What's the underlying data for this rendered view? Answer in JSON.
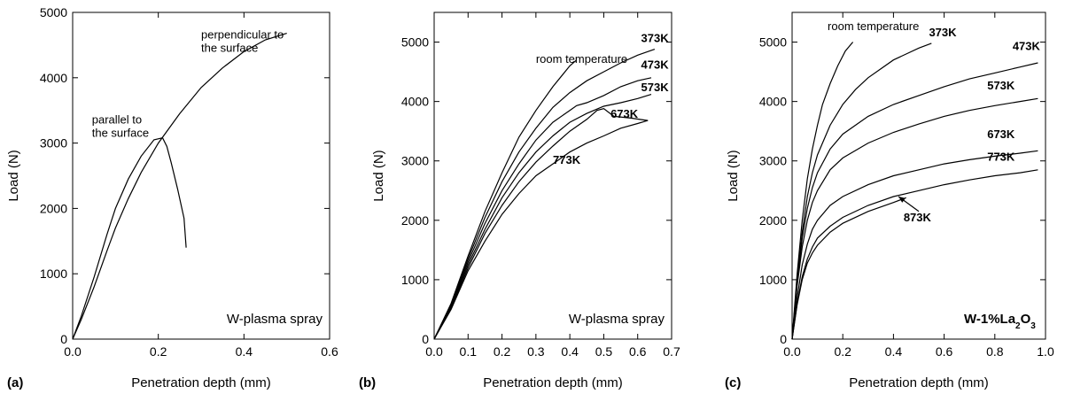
{
  "chart_data": [
    {
      "type": "line",
      "panel_label": "(a)",
      "xlabel": "Penetration depth (mm)",
      "ylabel": "Load (N)",
      "xlim": [
        0,
        0.6
      ],
      "ylim": [
        0,
        5000
      ],
      "xticks": [
        "0.0",
        "0.2",
        "0.4",
        "0.6"
      ],
      "yticks": [
        "0",
        "1000",
        "2000",
        "3000",
        "4000",
        "5000"
      ],
      "inset_label": "W-plasma spray",
      "series": [
        {
          "name": "perpendicular to the surface",
          "x": [
            0,
            0.02,
            0.05,
            0.08,
            0.1,
            0.13,
            0.16,
            0.2,
            0.25,
            0.3,
            0.35,
            0.4,
            0.45,
            0.5
          ],
          "y": [
            0,
            300,
            800,
            1350,
            1700,
            2150,
            2550,
            3000,
            3450,
            3850,
            4150,
            4400,
            4580,
            4680
          ]
        },
        {
          "name": "parallel to the surface",
          "x": [
            0,
            0.02,
            0.05,
            0.08,
            0.1,
            0.13,
            0.16,
            0.19,
            0.21,
            0.22,
            0.23,
            0.245,
            0.26,
            0.265
          ],
          "y": [
            0,
            350,
            950,
            1600,
            2000,
            2450,
            2800,
            3050,
            3080,
            2950,
            2700,
            2300,
            1850,
            1400
          ]
        }
      ],
      "annotations": [
        {
          "lines": [
            "perpendicular to",
            "the surface"
          ],
          "x": 0.3,
          "y": 4600
        },
        {
          "lines": [
            "parallel to",
            "the surface"
          ],
          "x": 0.045,
          "y": 3300
        }
      ]
    },
    {
      "type": "line",
      "panel_label": "(b)",
      "xlabel": "Penetration depth (mm)",
      "ylabel": "Load (N)",
      "xlim": [
        0,
        0.7
      ],
      "ylim": [
        0,
        5500
      ],
      "xticks": [
        "0.0",
        "0.1",
        "0.2",
        "0.3",
        "0.4",
        "0.5",
        "0.6",
        "0.7"
      ],
      "yticks": [
        "0",
        "1000",
        "2000",
        "3000",
        "4000",
        "5000"
      ],
      "inset_label": "W-plasma spray",
      "series": [
        {
          "name": "room temperature",
          "x": [
            0,
            0.05,
            0.1,
            0.15,
            0.2,
            0.25,
            0.3,
            0.35,
            0.4,
            0.42
          ],
          "y": [
            0,
            600,
            1400,
            2150,
            2800,
            3400,
            3850,
            4250,
            4600,
            4700
          ]
        },
        {
          "name": "373K",
          "x": [
            0,
            0.05,
            0.1,
            0.15,
            0.2,
            0.25,
            0.3,
            0.35,
            0.4,
            0.45,
            0.5,
            0.55,
            0.6,
            0.65
          ],
          "y": [
            0,
            580,
            1350,
            2050,
            2650,
            3150,
            3550,
            3900,
            4150,
            4350,
            4500,
            4650,
            4780,
            4880
          ]
        },
        {
          "name": "473K",
          "x": [
            0,
            0.05,
            0.1,
            0.15,
            0.2,
            0.25,
            0.3,
            0.35,
            0.4,
            0.42,
            0.45,
            0.5,
            0.55,
            0.6,
            0.64
          ],
          "y": [
            0,
            560,
            1300,
            1950,
            2500,
            2950,
            3350,
            3650,
            3850,
            3930,
            3980,
            4100,
            4250,
            4350,
            4400
          ]
        },
        {
          "name": "573K",
          "x": [
            0,
            0.05,
            0.1,
            0.15,
            0.2,
            0.25,
            0.3,
            0.35,
            0.4,
            0.45,
            0.5,
            0.55,
            0.6,
            0.64
          ],
          "y": [
            0,
            540,
            1250,
            1850,
            2380,
            2800,
            3150,
            3420,
            3650,
            3800,
            3920,
            3980,
            4050,
            4120
          ]
        },
        {
          "name": "673K",
          "x": [
            0,
            0.05,
            0.1,
            0.15,
            0.2,
            0.25,
            0.3,
            0.35,
            0.4,
            0.45,
            0.48,
            0.5,
            0.53,
            0.58,
            0.63
          ],
          "y": [
            0,
            520,
            1200,
            1780,
            2250,
            2650,
            2980,
            3250,
            3500,
            3700,
            3850,
            3880,
            3750,
            3720,
            3680
          ]
        },
        {
          "name": "773K",
          "x": [
            0,
            0.05,
            0.1,
            0.15,
            0.2,
            0.25,
            0.3,
            0.35,
            0.4,
            0.45,
            0.5,
            0.55,
            0.6,
            0.63
          ],
          "y": [
            0,
            500,
            1150,
            1650,
            2100,
            2450,
            2750,
            2950,
            3150,
            3300,
            3420,
            3550,
            3630,
            3680
          ]
        }
      ],
      "annotations": [
        {
          "text": "room temperature",
          "x": 0.3,
          "y": 4650,
          "bold": false
        },
        {
          "text": "373K",
          "x": 0.61,
          "y": 5000,
          "bold": true
        },
        {
          "text": "473K",
          "x": 0.61,
          "y": 4550,
          "bold": true
        },
        {
          "text": "573K",
          "x": 0.61,
          "y": 4170,
          "bold": true
        },
        {
          "text": "673K",
          "x": 0.52,
          "y": 3730,
          "bold": true
        },
        {
          "text": "773K",
          "x": 0.35,
          "y": 2950,
          "bold": true
        }
      ]
    },
    {
      "type": "line",
      "panel_label": "(c)",
      "xlabel": "Penetration depth (mm)",
      "ylabel": "Load (N)",
      "xlim": [
        0,
        1.0
      ],
      "ylim": [
        0,
        5500
      ],
      "xticks": [
        "0.0",
        "0.2",
        "0.4",
        "0.6",
        "0.8",
        "1.0"
      ],
      "yticks": [
        "0",
        "1000",
        "2000",
        "3000",
        "4000",
        "5000"
      ],
      "inset_label": "W-1%La2O3",
      "series": [
        {
          "name": "room temperature",
          "x": [
            0,
            0.02,
            0.04,
            0.06,
            0.08,
            0.1,
            0.12,
            0.15,
            0.18,
            0.21,
            0.24
          ],
          "y": [
            0,
            1100,
            2000,
            2700,
            3200,
            3600,
            3950,
            4300,
            4600,
            4850,
            5000
          ]
        },
        {
          "name": "373K",
          "x": [
            0,
            0.02,
            0.04,
            0.06,
            0.08,
            0.1,
            0.15,
            0.2,
            0.25,
            0.3,
            0.35,
            0.4,
            0.45,
            0.5,
            0.55
          ],
          "y": [
            0,
            1000,
            1800,
            2400,
            2800,
            3100,
            3600,
            3950,
            4200,
            4400,
            4550,
            4700,
            4800,
            4900,
            4980
          ]
        },
        {
          "name": "473K",
          "x": [
            0,
            0.02,
            0.04,
            0.06,
            0.08,
            0.1,
            0.15,
            0.2,
            0.3,
            0.4,
            0.5,
            0.6,
            0.7,
            0.8,
            0.9,
            0.97
          ],
          "y": [
            0,
            950,
            1700,
            2200,
            2550,
            2800,
            3200,
            3450,
            3750,
            3950,
            4100,
            4250,
            4380,
            4480,
            4580,
            4650
          ]
        },
        {
          "name": "573K",
          "x": [
            0,
            0.02,
            0.04,
            0.06,
            0.08,
            0.1,
            0.15,
            0.2,
            0.3,
            0.4,
            0.5,
            0.6,
            0.7,
            0.8,
            0.9,
            0.97
          ],
          "y": [
            0,
            900,
            1550,
            2000,
            2300,
            2500,
            2850,
            3050,
            3300,
            3480,
            3620,
            3750,
            3850,
            3930,
            4000,
            4050
          ]
        },
        {
          "name": "673K",
          "x": [
            0,
            0.02,
            0.04,
            0.06,
            0.08,
            0.1,
            0.15,
            0.2,
            0.3,
            0.4,
            0.5,
            0.6,
            0.7,
            0.8,
            0.9,
            0.97
          ],
          "y": [
            0,
            700,
            1250,
            1600,
            1850,
            2000,
            2250,
            2400,
            2600,
            2750,
            2850,
            2950,
            3020,
            3080,
            3130,
            3170
          ]
        },
        {
          "name": "773K",
          "x": [
            0,
            0.02,
            0.04,
            0.06,
            0.08,
            0.1,
            0.15,
            0.2,
            0.3,
            0.4,
            0.5,
            0.6,
            0.7,
            0.8,
            0.9,
            0.97
          ],
          "y": [
            0,
            600,
            1050,
            1350,
            1550,
            1700,
            1900,
            2050,
            2250,
            2400,
            2500,
            2600,
            2680,
            2750,
            2800,
            2850
          ]
        },
        {
          "name": "873K",
          "x": [
            0,
            0.02,
            0.04,
            0.06,
            0.08,
            0.1,
            0.15,
            0.2,
            0.3,
            0.4,
            0.45
          ],
          "y": [
            0,
            580,
            1000,
            1280,
            1450,
            1580,
            1800,
            1950,
            2150,
            2300,
            2380
          ]
        }
      ],
      "annotations": [
        {
          "text": "room temperature",
          "x": 0.14,
          "y": 5200,
          "bold": false
        },
        {
          "text": "373K",
          "x": 0.54,
          "y": 5100,
          "bold": true
        },
        {
          "text": "473K",
          "x": 0.87,
          "y": 4870,
          "bold": true
        },
        {
          "text": "573K",
          "x": 0.77,
          "y": 4200,
          "bold": true
        },
        {
          "text": "673K",
          "x": 0.77,
          "y": 3380,
          "bold": true
        },
        {
          "text": "773K",
          "x": 0.77,
          "y": 3000,
          "bold": true
        },
        {
          "text": "873K",
          "x": 0.44,
          "y": 1980,
          "bold": true
        }
      ],
      "arrow": {
        "from": [
          0.5,
          2150
        ],
        "to": [
          0.42,
          2400
        ]
      }
    }
  ]
}
